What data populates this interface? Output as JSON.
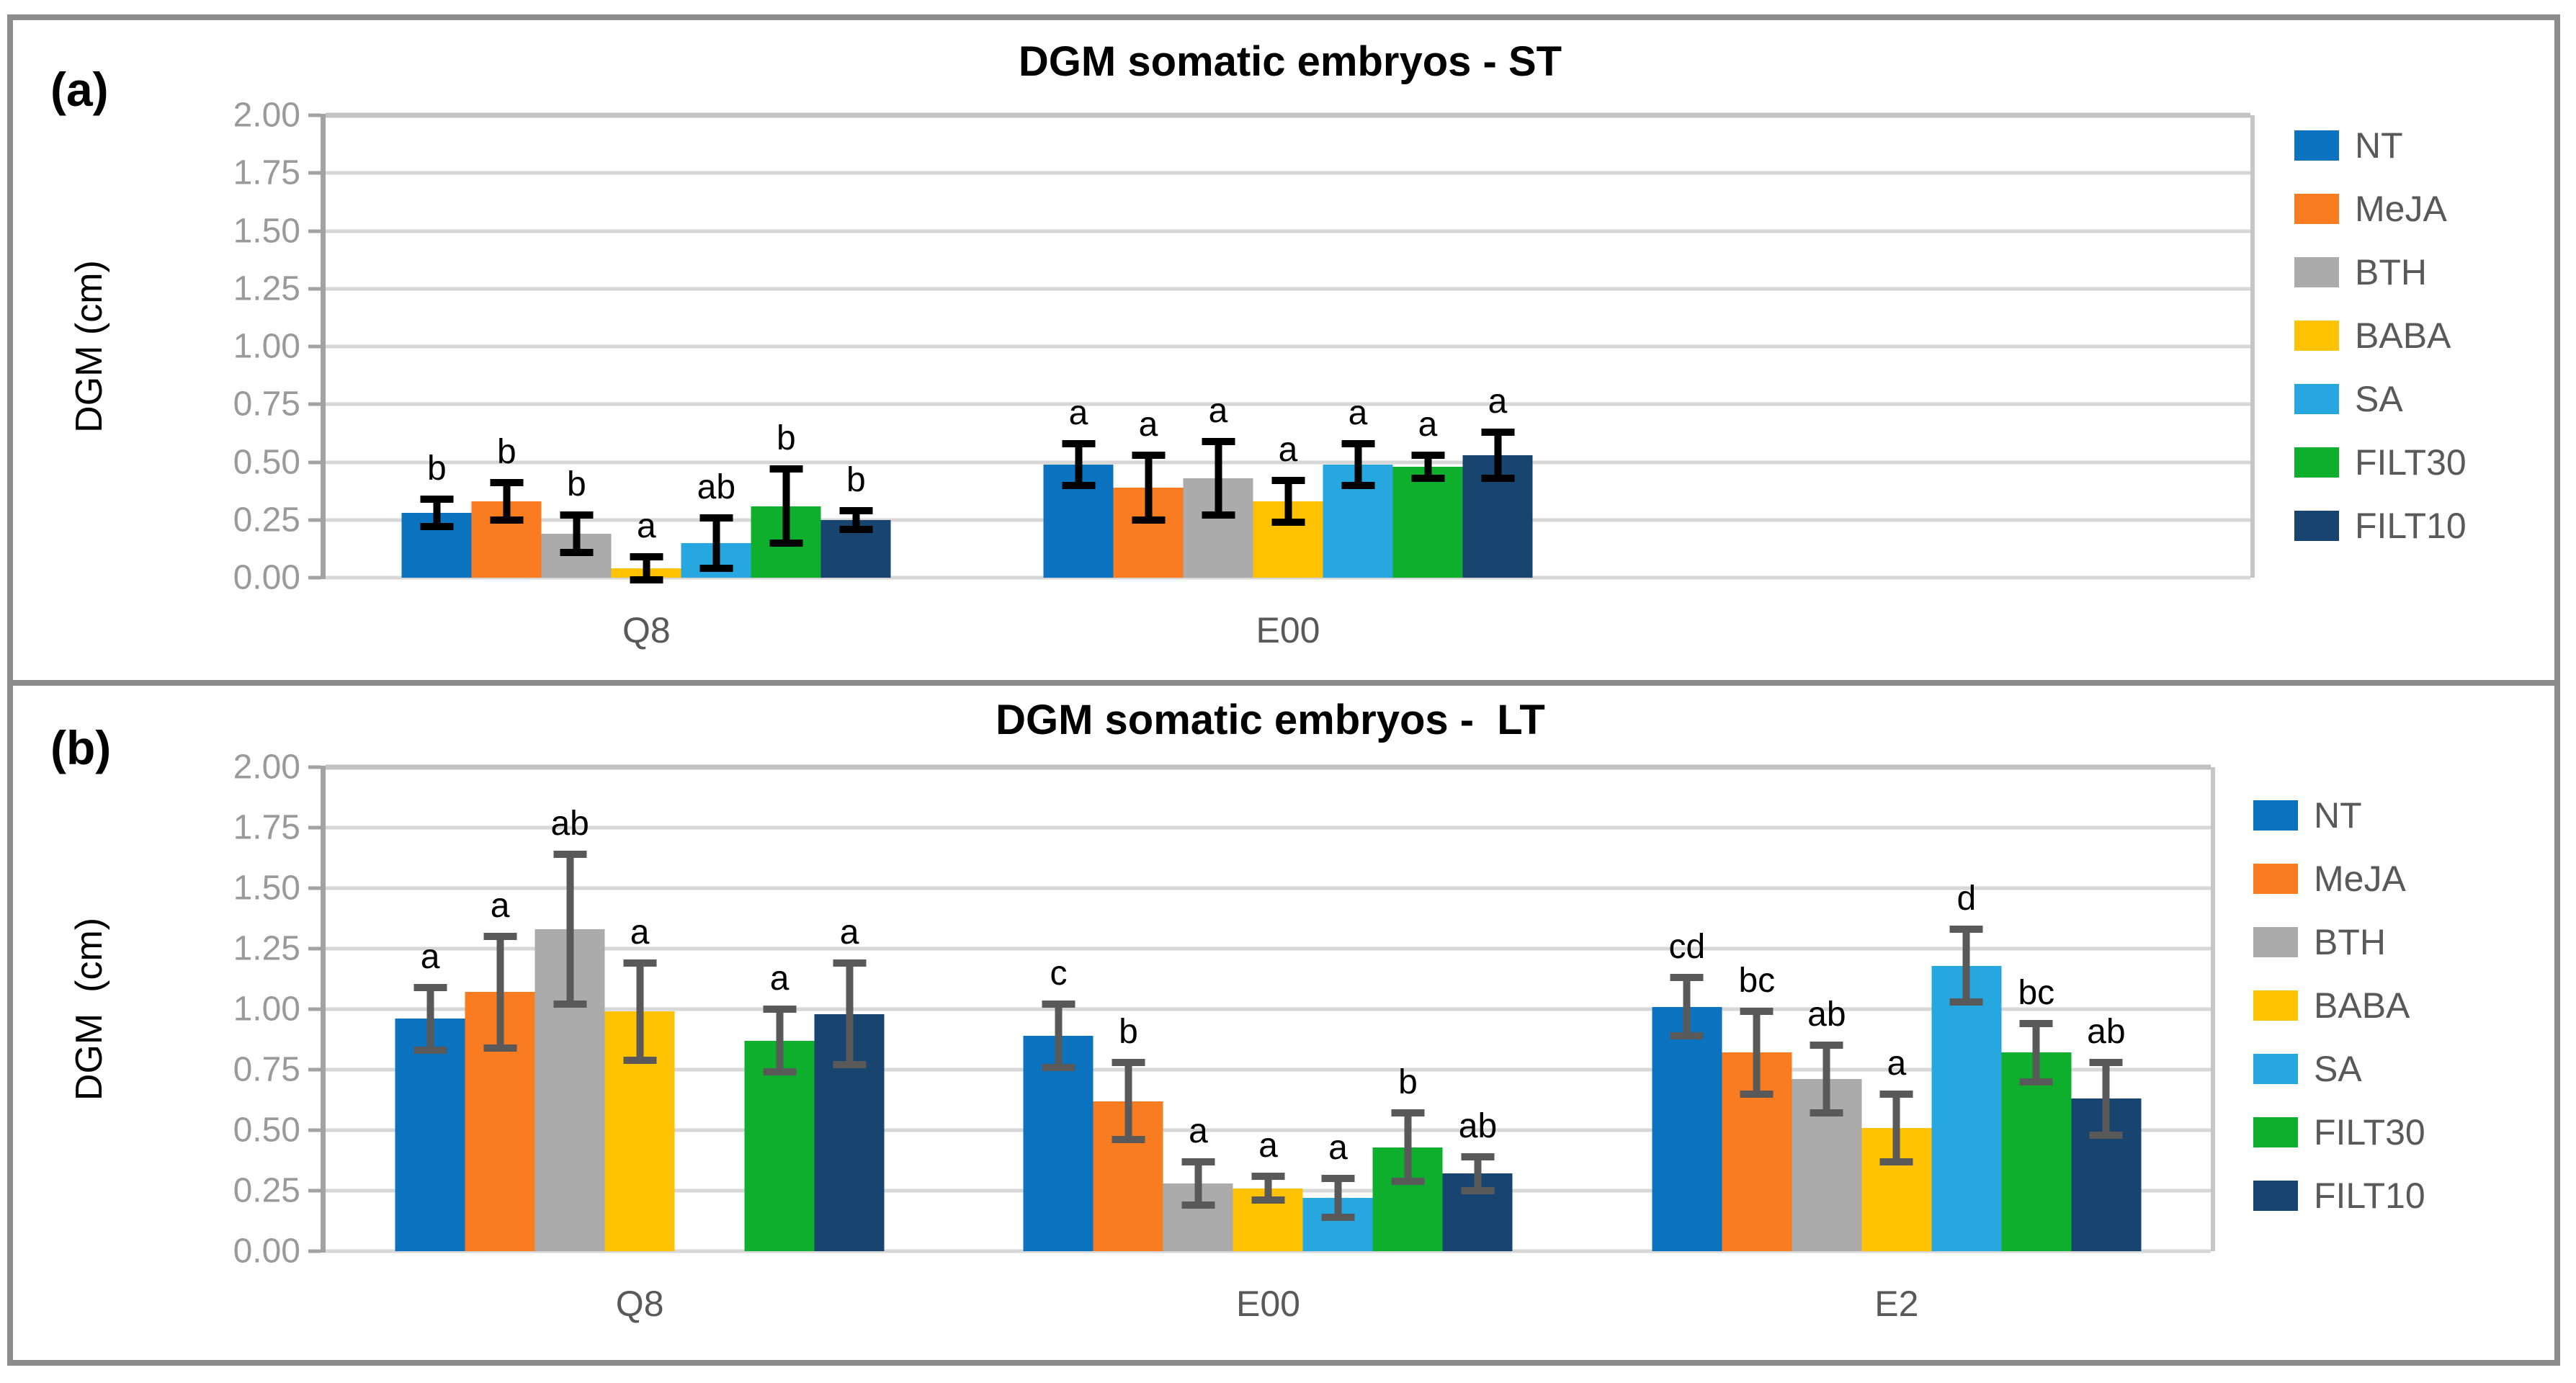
{
  "figure": {
    "panels": [
      {
        "letter": "(a)",
        "title": "DGM somatic embryos - ST",
        "ylabel": "DGM (cm)"
      },
      {
        "letter": "(b)",
        "title": "DGM somatic embryos -  LT",
        "ylabel": "DGM  (cm)"
      }
    ],
    "legend_items": [
      "NT",
      "MeJA",
      "BTH",
      "BABA",
      "SA",
      "FILT30",
      "FILT10"
    ],
    "colors": {
      "NT": "#0B73C0",
      "MeJA": "#F97D20",
      "BTH": "#ABABAB",
      "BABA": "#FFC303",
      "SA": "#27A7E0",
      "FILT30": "#0FAF2E",
      "FILT10": "#17456F",
      "error_bar_panel_a": "#000000",
      "error_bar_panel_b": "#595959",
      "tick_label": "#9A9A9A",
      "category_label": "#595959",
      "legend_label": "#595959",
      "frame": "#8C8C8C"
    }
  },
  "chart_data": [
    {
      "type": "bar",
      "panel": "a",
      "title": "DGM somatic embryos - ST",
      "ylabel": "DGM (cm)",
      "ylim": [
        0,
        2.0
      ],
      "yticks": [
        "2.00",
        "1.75",
        "1.50",
        "1.25",
        "1.00",
        "0.75",
        "0.50",
        "0.25",
        "0.00"
      ],
      "grid": true,
      "legend_position": "right",
      "categories": [
        "Q8",
        "E00"
      ],
      "category_slots": 3,
      "error_bar_color": "#000000",
      "series": [
        {
          "name": "NT",
          "color": "#0B73C0",
          "values": [
            0.28,
            0.49
          ],
          "errors": [
            0.06,
            0.09
          ],
          "letters": [
            "b",
            "a"
          ]
        },
        {
          "name": "MeJA",
          "color": "#F97D20",
          "values": [
            0.33,
            0.39
          ],
          "errors": [
            0.08,
            0.14
          ],
          "letters": [
            "b",
            "a"
          ]
        },
        {
          "name": "BTH",
          "color": "#ABABAB",
          "values": [
            0.19,
            0.43
          ],
          "errors": [
            0.08,
            0.16
          ],
          "letters": [
            "b",
            "a"
          ]
        },
        {
          "name": "BABA",
          "color": "#FFC303",
          "values": [
            0.04,
            0.33
          ],
          "errors": [
            0.05,
            0.09
          ],
          "letters": [
            "a",
            "a"
          ]
        },
        {
          "name": "SA",
          "color": "#27A7E0",
          "values": [
            0.15,
            0.49
          ],
          "errors": [
            0.11,
            0.09
          ],
          "letters": [
            "ab",
            "a"
          ]
        },
        {
          "name": "FILT30",
          "color": "#0FAF2E",
          "values": [
            0.31,
            0.48
          ],
          "errors": [
            0.16,
            0.05
          ],
          "letters": [
            "b",
            "a"
          ]
        },
        {
          "name": "FILT10",
          "color": "#17456F",
          "values": [
            0.25,
            0.53
          ],
          "errors": [
            0.04,
            0.1
          ],
          "letters": [
            "b",
            "a"
          ]
        }
      ]
    },
    {
      "type": "bar",
      "panel": "b",
      "title": "DGM somatic embryos -  LT",
      "ylabel": "DGM  (cm)",
      "ylim": [
        0,
        2.0
      ],
      "yticks": [
        "2.00",
        "1.75",
        "1.50",
        "1.25",
        "1.00",
        "0.75",
        "0.50",
        "0.25",
        "0.00"
      ],
      "grid": true,
      "legend_position": "right",
      "categories": [
        "Q8",
        "E00",
        "E2"
      ],
      "category_slots": 3,
      "error_bar_color": "#595959",
      "series": [
        {
          "name": "NT",
          "color": "#0B73C0",
          "values": [
            0.96,
            0.89,
            1.01
          ],
          "errors": [
            0.13,
            0.13,
            0.12
          ],
          "letters": [
            "a",
            "c",
            "cd"
          ]
        },
        {
          "name": "MeJA",
          "color": "#F97D20",
          "values": [
            1.07,
            0.62,
            0.82
          ],
          "errors": [
            0.23,
            0.16,
            0.17
          ],
          "letters": [
            "a",
            "b",
            "bc"
          ]
        },
        {
          "name": "BTH",
          "color": "#ABABAB",
          "values": [
            1.33,
            0.28,
            0.71
          ],
          "errors": [
            0.31,
            0.09,
            0.14
          ],
          "letters": [
            "ab",
            "a",
            "ab"
          ]
        },
        {
          "name": "BABA",
          "color": "#FFC303",
          "values": [
            0.99,
            0.26,
            0.51
          ],
          "errors": [
            0.2,
            0.05,
            0.14
          ],
          "letters": [
            "a",
            "a",
            "a"
          ]
        },
        {
          "name": "SA",
          "color": "#27A7E0",
          "values": [
            null,
            0.22,
            1.18
          ],
          "errors": [
            null,
            0.08,
            0.15
          ],
          "letters": [
            null,
            "a",
            "d"
          ]
        },
        {
          "name": "FILT30",
          "color": "#0FAF2E",
          "values": [
            0.87,
            0.43,
            0.82
          ],
          "errors": [
            0.13,
            0.14,
            0.12
          ],
          "letters": [
            "a",
            "b",
            "bc"
          ]
        },
        {
          "name": "FILT10",
          "color": "#17456F",
          "values": [
            0.98,
            0.32,
            0.63
          ],
          "errors": [
            0.21,
            0.07,
            0.15
          ],
          "letters": [
            "a",
            "ab",
            "ab"
          ]
        }
      ]
    }
  ]
}
